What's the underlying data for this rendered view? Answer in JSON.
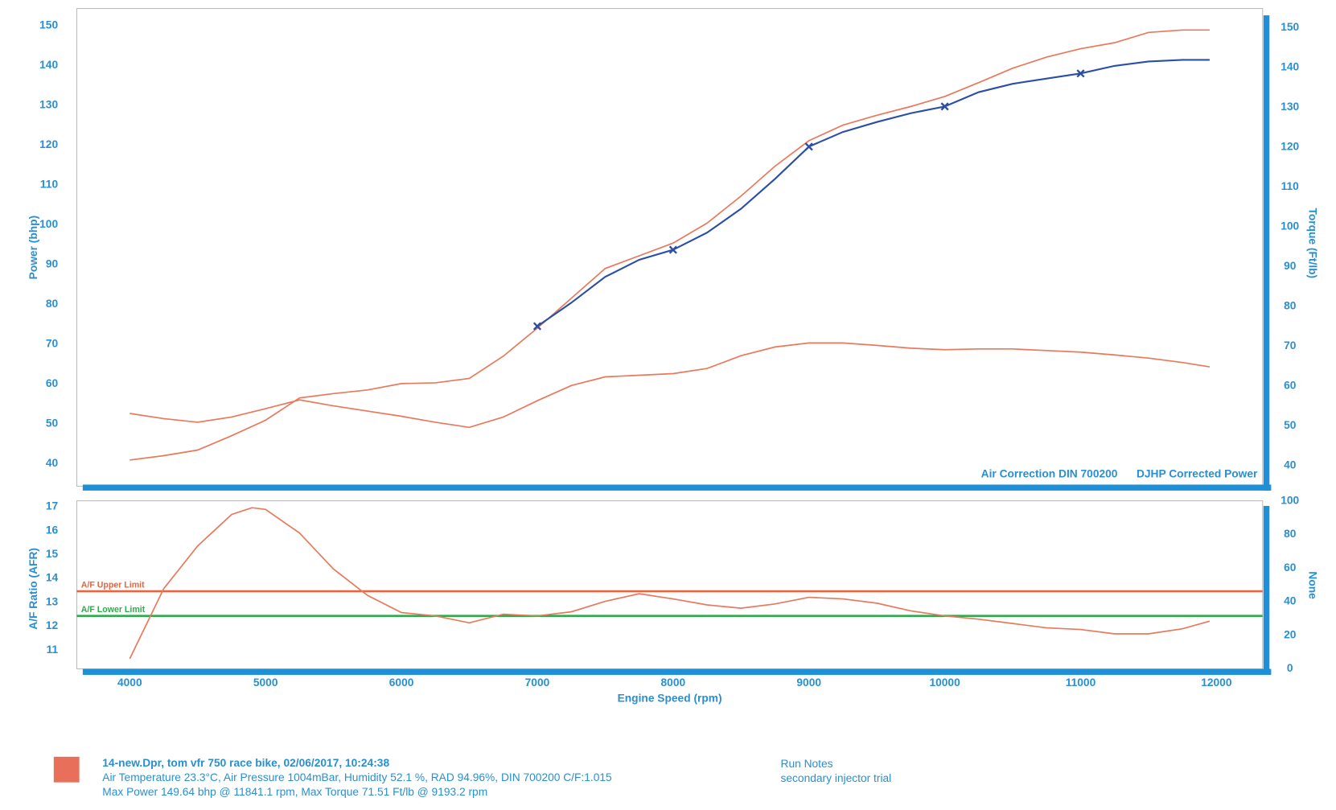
{
  "chart_data": [
    {
      "type": "line",
      "y_label": "Power (bhp)",
      "y2_label": "Torque (Ft/lb)",
      "annotations": [
        "Air Correction DIN 700200",
        "DJHP Corrected Power"
      ],
      "xlim": [
        3610,
        12340
      ],
      "ylim": [
        34.3,
        154.3
      ],
      "yticks": [
        40,
        50,
        60,
        70,
        80,
        90,
        100,
        110,
        120,
        130,
        140,
        150
      ],
      "y2lim": [
        34.8,
        154.8
      ],
      "y2ticks": [
        40,
        50,
        60,
        70,
        80,
        90,
        100,
        110,
        120,
        130,
        140,
        150
      ],
      "series": [
        {
          "color": "#e8795c",
          "x": [
            4000,
            4250,
            4500,
            4750,
            5000,
            5250,
            5500,
            5750,
            6000,
            6250,
            6500,
            6750,
            7000,
            7250,
            7500,
            7750,
            8000,
            8250,
            8500,
            8750,
            9000,
            9250,
            9500,
            9750,
            10000,
            10250,
            10500,
            10750,
            11000,
            11250,
            11500,
            11750,
            11950
          ],
          "values": [
            40.9,
            42.0,
            43.4,
            47.0,
            50.9,
            56.5,
            57.6,
            58.5,
            60.1,
            60.3,
            61.4,
            67.0,
            74.0,
            81.5,
            89.0,
            92.2,
            95.4,
            100.4,
            107.2,
            114.7,
            121.1,
            125.0,
            127.5,
            129.7,
            132.2,
            135.7,
            139.3,
            142.1,
            144.2,
            145.7,
            148.3,
            148.9,
            148.9
          ]
        },
        {
          "color": "#e8795c",
          "axis": "y2",
          "x": [
            4000,
            4250,
            4500,
            4750,
            5000,
            5250,
            5500,
            5750,
            6000,
            6250,
            6500,
            6750,
            7000,
            7250,
            7500,
            7750,
            8000,
            8250,
            8500,
            8750,
            9000,
            9250,
            9500,
            9750,
            10000,
            10250,
            10500,
            10750,
            11000,
            11250,
            11500,
            11750,
            11950
          ],
          "values": [
            53.1,
            51.8,
            50.9,
            52.2,
            54.3,
            56.5,
            55.0,
            53.7,
            52.4,
            50.9,
            49.6,
            52.2,
            56.3,
            60.1,
            62.3,
            62.7,
            63.1,
            64.4,
            67.6,
            69.8,
            70.8,
            70.8,
            70.2,
            69.5,
            69.1,
            69.3,
            69.3,
            68.9,
            68.5,
            67.8,
            67.0,
            65.9,
            64.8
          ]
        },
        {
          "color": "#2b4ea6",
          "x": [
            7000,
            7250,
            7500,
            7750,
            8000,
            8250,
            8500,
            8750,
            9000,
            9250,
            9500,
            9750,
            10000,
            10250,
            10500,
            10750,
            11000,
            11250,
            11500,
            11750,
            11950
          ],
          "values": [
            74.5,
            80.4,
            86.9,
            91.2,
            93.7,
            98.0,
            104.0,
            111.5,
            119.6,
            123.3,
            125.8,
            128.0,
            129.7,
            133.3,
            135.4,
            136.7,
            138.0,
            139.9,
            141.0,
            141.4,
            141.4
          ],
          "marked_x": [
            7000,
            8000,
            9000,
            10000,
            11000
          ]
        }
      ]
    },
    {
      "type": "line",
      "y_label": "A/F Ratio (AFR)",
      "y2_label": "None",
      "x_label": "Engine Speed (rpm)",
      "xlim": [
        3610,
        12340
      ],
      "xticks": [
        4000,
        5000,
        6000,
        7000,
        8000,
        9000,
        10000,
        11000,
        12000
      ],
      "ylim": [
        10.21,
        17.25
      ],
      "yticks": [
        11,
        12,
        13,
        14,
        15,
        16,
        17
      ],
      "y2lim": [
        0,
        100
      ],
      "y2ticks": [
        0,
        20,
        40,
        60,
        80,
        100
      ],
      "series": [
        {
          "color": "#e8795c",
          "x": [
            4000,
            4250,
            4500,
            4750,
            4900,
            5000,
            5250,
            5500,
            5750,
            6000,
            6250,
            6500,
            6750,
            7000,
            7250,
            7500,
            7750,
            8000,
            8250,
            8500,
            8750,
            9000,
            9250,
            9500,
            9750,
            10000,
            10250,
            10500,
            10750,
            11000,
            11250,
            11500,
            11750,
            11950
          ],
          "values": [
            10.64,
            13.57,
            15.36,
            16.68,
            16.96,
            16.89,
            15.9,
            14.39,
            13.29,
            12.57,
            12.43,
            12.14,
            12.5,
            12.43,
            12.6,
            13.04,
            13.36,
            13.14,
            12.89,
            12.75,
            12.93,
            13.21,
            13.14,
            12.96,
            12.64,
            12.43,
            12.29,
            12.11,
            11.93,
            11.86,
            11.68,
            11.68,
            11.89,
            12.21
          ]
        }
      ],
      "limits": [
        {
          "label": "A/F Upper Limit",
          "value": 13.46,
          "color": "#e8643c"
        },
        {
          "label": "A/F Lower Limit",
          "value": 12.43,
          "color": "#2eab4a"
        }
      ]
    }
  ],
  "footer": {
    "swatch_color": "#e8705a",
    "run_lines": [
      "14-new.Dpr,   tom vfr 750 race bike,   02/06/2017,   10:24:38",
      "Air Temperature 23.3°C, Air Pressure 1004mBar, Humidity 52.1 %, RAD 94.96%,   DIN 700200  C/F:1.015",
      "Max Power 149.64 bhp @ 11841.1 rpm, Max Torque 71.51 Ft/lb @ 9193.2 rpm"
    ],
    "notes_title": "Run Notes",
    "notes": "secondary injector trial"
  }
}
